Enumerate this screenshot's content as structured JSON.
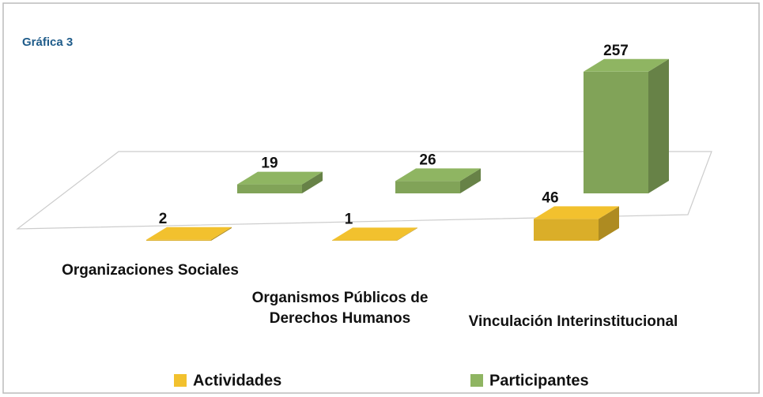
{
  "chart_data": {
    "type": "bar3d",
    "title": "Gráfica 3",
    "categories": [
      "Organizaciones Sociales",
      "Organismos Públicos de Derechos Humanos",
      "Vinculación Interinstitucional"
    ],
    "series": [
      {
        "name": "Actividades",
        "color": "#f2c12e",
        "values": [
          2,
          1,
          46
        ]
      },
      {
        "name": "Participantes",
        "color": "#8fb562",
        "values": [
          19,
          26,
          257
        ]
      }
    ],
    "legend": "bottom"
  }
}
